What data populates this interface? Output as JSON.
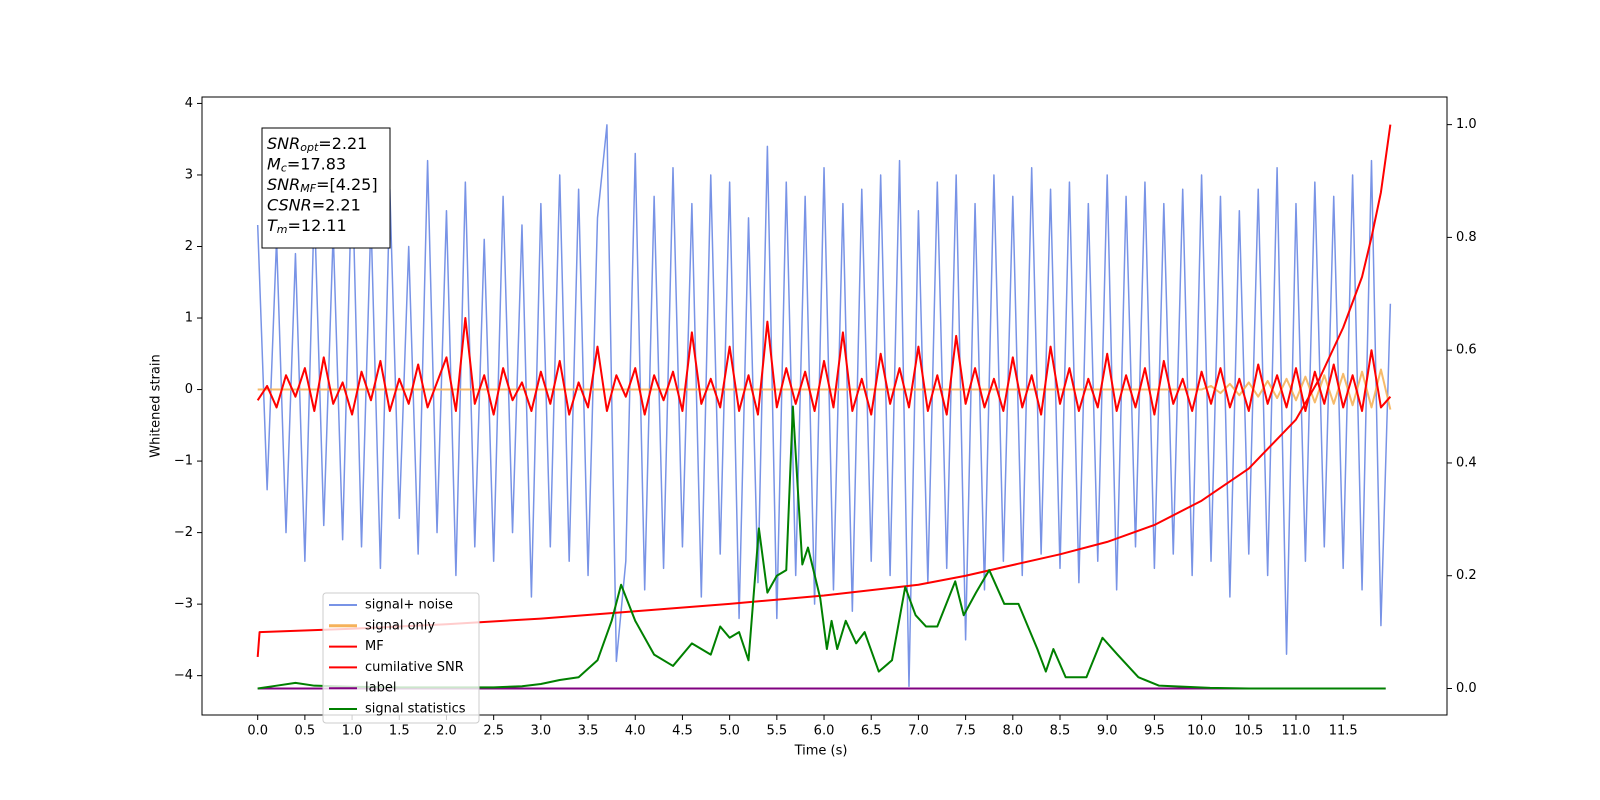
{
  "chart_data": {
    "type": "line",
    "xlabel": "Time (s)",
    "ylabel": "Whitened strain",
    "xlim": [
      -0.59,
      12.6
    ],
    "ylim": [
      -4.55,
      4.09
    ],
    "y2lim": [
      -0.047,
      1.049
    ],
    "xticks": [
      {
        "value": 0,
        "label": "0.0"
      },
      0.5,
      {
        "value": 1,
        "label": "1.0"
      },
      1.5,
      {
        "value": 2,
        "label": "2.0"
      },
      2.5,
      {
        "value": 3,
        "label": "3.0"
      },
      3.5,
      {
        "value": 4,
        "label": "4.0"
      },
      4.5,
      {
        "value": 5,
        "label": "5.0"
      },
      5.5,
      {
        "value": 6,
        "label": "6.0"
      },
      6.5,
      {
        "value": 7,
        "label": "7.0"
      },
      7.5,
      {
        "value": 8,
        "label": "8.0"
      },
      8.5,
      {
        "value": 9,
        "label": "9.0"
      },
      9.5,
      {
        "value": 10,
        "label": "10.0"
      },
      10.5,
      {
        "value": 11,
        "label": "11.0"
      },
      11.5
    ],
    "yticks": [
      {
        "value": -4,
        "label": "−4"
      },
      {
        "value": -3,
        "label": "−3"
      },
      {
        "value": -2,
        "label": "−2"
      },
      {
        "value": -1,
        "label": "−1"
      },
      0,
      1,
      2,
      3,
      4
    ],
    "y2ticks": [
      {
        "value": 0,
        "label": "0.0"
      },
      0.2,
      0.4,
      0.6,
      0.8,
      {
        "value": 1,
        "label": "1.0"
      }
    ],
    "annotations": [
      {
        "main": "SNR",
        "sub": "opt",
        "rest": "=2.21"
      },
      {
        "main": "M",
        "sub": "c",
        "rest": "=17.83"
      },
      {
        "main": "SNR",
        "sub": "MF",
        "rest": "=[4.25]"
      },
      {
        "main": "CSNR",
        "rest": "=2.21"
      },
      {
        "main": "T",
        "sub": "m",
        "rest": "=12.11"
      }
    ],
    "x": [
      0,
      0.1,
      0.2,
      0.3,
      0.4,
      0.5,
      0.6,
      0.7,
      0.8,
      0.9,
      1,
      1.1,
      1.2,
      1.3,
      1.4,
      1.5,
      1.6,
      1.7,
      1.8,
      1.9,
      2,
      2.1,
      2.2,
      2.3,
      2.4,
      2.5,
      2.6,
      2.7,
      2.8,
      2.9,
      3,
      3.1,
      3.2,
      3.3,
      3.4,
      3.5,
      3.6,
      3.7,
      3.8,
      3.9,
      4,
      4.1,
      4.2,
      4.3,
      4.4,
      4.5,
      4.6,
      4.7,
      4.8,
      4.9,
      5,
      5.1,
      5.2,
      5.3,
      5.4,
      5.5,
      5.6,
      5.7,
      5.8,
      5.9,
      6,
      6.1,
      6.2,
      6.3,
      6.4,
      6.5,
      6.6,
      6.7,
      6.8,
      6.9,
      7,
      7.1,
      7.2,
      7.3,
      7.4,
      7.5,
      7.6,
      7.7,
      7.8,
      7.9,
      8,
      8.1,
      8.2,
      8.3,
      8.4,
      8.5,
      8.6,
      8.7,
      8.8,
      8.9,
      9,
      9.1,
      9.2,
      9.3,
      9.4,
      9.5,
      9.6,
      9.7,
      9.8,
      9.9,
      10,
      10.1,
      10.2,
      10.3,
      10.4,
      10.5,
      10.6,
      10.7,
      10.8,
      10.9,
      11,
      11.1,
      11.2,
      11.3,
      11.4,
      11.5,
      11.6,
      11.7,
      11.8,
      11.9,
      12
    ],
    "series": [
      {
        "name": "signal+ noise",
        "color": "#7893e6",
        "values": [
          2.3,
          -1.4,
          2.1,
          -2.0,
          1.9,
          -2.4,
          2.6,
          -1.9,
          2.2,
          -2.1,
          3.1,
          -2.2,
          2.4,
          -2.5,
          2.8,
          -1.8,
          2.0,
          -2.3,
          3.2,
          -2.0,
          2.5,
          -2.6,
          2.9,
          -2.2,
          2.1,
          -2.4,
          2.7,
          -2.0,
          2.3,
          -2.9,
          2.6,
          -2.2,
          3.0,
          -2.4,
          2.8,
          -2.6,
          2.4,
          3.7,
          -3.8,
          -2.4,
          3.3,
          -2.8,
          2.7,
          -2.5,
          3.1,
          -2.2,
          2.6,
          -2.9,
          3.0,
          -2.3,
          2.9,
          -3.2,
          2.4,
          -2.7,
          3.4,
          -3.2,
          2.9,
          -2.6,
          2.7,
          -3.0,
          3.1,
          -2.8,
          2.6,
          -3.1,
          2.8,
          -2.4,
          3.0,
          -2.6,
          3.2,
          -4.15,
          2.5,
          -2.7,
          2.9,
          -2.5,
          3.0,
          -3.5,
          2.6,
          -2.8,
          3.0,
          -2.4,
          2.7,
          -2.6,
          3.1,
          -2.3,
          2.8,
          -2.5,
          2.9,
          -2.7,
          2.6,
          -2.4,
          3.0,
          -2.8,
          2.7,
          -2.2,
          2.9,
          -2.5,
          2.6,
          -2.3,
          2.8,
          -2.6,
          3.0,
          -2.4,
          2.7,
          -2.9,
          2.5,
          -2.3,
          2.8,
          -2.6,
          3.1,
          -3.7,
          2.6,
          -2.4,
          2.9,
          -2.2,
          2.7,
          -2.5,
          3.0,
          -2.8,
          3.2,
          -3.3,
          1.2
        ]
      },
      {
        "name": "signal only",
        "color": "#f5b25a",
        "values": [
          0,
          0,
          0,
          0,
          0,
          0,
          0,
          0,
          0,
          0,
          0,
          0,
          0,
          0,
          0,
          0,
          0,
          0,
          0,
          0,
          0,
          0,
          0,
          0,
          0,
          0,
          0,
          0,
          0,
          0,
          0,
          0,
          0,
          0,
          0,
          0,
          0,
          0,
          0,
          0,
          0,
          0,
          0,
          0,
          0,
          0,
          0,
          0,
          0,
          0,
          0,
          0,
          0,
          0,
          0,
          0,
          0,
          0,
          0,
          0,
          0,
          0,
          0,
          0,
          0,
          0,
          0,
          0,
          0,
          0,
          0,
          0,
          0,
          0,
          0,
          0,
          0,
          0,
          0,
          0,
          0,
          0,
          0,
          0,
          0,
          0,
          0,
          0,
          0,
          0,
          0,
          0,
          0,
          0,
          0,
          0,
          0,
          0,
          0,
          0,
          0,
          0.05,
          -0.05,
          0.08,
          -0.08,
          0.1,
          -0.1,
          0.12,
          -0.12,
          0.15,
          -0.15,
          0.18,
          -0.18,
          0.2,
          -0.2,
          0.22,
          -0.22,
          0.25,
          -0.25,
          0.28,
          -0.28
        ]
      },
      {
        "name": "MF",
        "color": "#ff0000",
        "values": [
          -0.15,
          0.05,
          -0.25,
          0.2,
          -0.1,
          0.3,
          -0.3,
          0.45,
          -0.2,
          0.1,
          -0.35,
          0.25,
          -0.15,
          0.4,
          -0.3,
          0.15,
          -0.2,
          0.35,
          -0.25,
          0.1,
          0.45,
          -0.3,
          1.0,
          -0.2,
          0.2,
          -0.35,
          0.3,
          -0.15,
          0.1,
          -0.3,
          0.25,
          -0.2,
          0.4,
          -0.35,
          0.1,
          -0.25,
          0.6,
          -0.3,
          0.2,
          -0.1,
          0.3,
          -0.35,
          0.2,
          -0.15,
          0.25,
          -0.3,
          0.8,
          -0.2,
          0.15,
          -0.25,
          0.6,
          -0.3,
          0.2,
          -0.35,
          0.95,
          -0.25,
          0.3,
          -0.2,
          0.25,
          -0.3,
          0.4,
          -0.25,
          0.8,
          -0.3,
          0.15,
          -0.35,
          0.5,
          -0.2,
          0.3,
          -0.25,
          0.6,
          -0.3,
          0.2,
          -0.35,
          0.75,
          -0.2,
          0.3,
          -0.25,
          0.15,
          -0.3,
          0.45,
          -0.25,
          0.2,
          -0.35,
          0.6,
          -0.2,
          0.3,
          -0.3,
          0.15,
          -0.25,
          0.5,
          -0.3,
          0.2,
          -0.25,
          0.3,
          -0.35,
          0.4,
          -0.2,
          0.15,
          -0.3,
          0.25,
          -0.2,
          0.3,
          -0.25,
          0.15,
          -0.3,
          0.35,
          -0.2,
          0.2,
          -0.25,
          0.3,
          -0.3,
          0.25,
          -0.2,
          0.35,
          -0.25,
          0.2,
          -0.3,
          0.55,
          -0.25,
          -0.1
        ]
      },
      {
        "name": "cumilative SNR",
        "color": "#ff0000",
        "axis": "y2",
        "x": [
          0,
          0.02,
          1,
          2,
          3,
          4,
          5,
          6,
          7,
          7.5,
          8,
          8.5,
          9,
          9.5,
          10,
          10.5,
          11,
          11.25,
          11.5,
          11.7,
          11.8,
          11.9,
          12.0
        ],
        "values": [
          0.056,
          0.1,
          0.106,
          0.114,
          0.124,
          0.137,
          0.15,
          0.165,
          0.184,
          0.2,
          0.219,
          0.238,
          0.26,
          0.29,
          0.333,
          0.39,
          0.477,
          0.55,
          0.64,
          0.73,
          0.8,
          0.88,
          1.0
        ]
      },
      {
        "name": "label",
        "color": "#800080",
        "axis": "y2",
        "x": [
          0,
          11.95
        ],
        "values": [
          0,
          0
        ]
      },
      {
        "name": "signal statistics",
        "color": "#008000",
        "axis": "y2",
        "x": [
          0,
          0.2,
          0.4,
          0.6,
          1.0,
          1.5,
          2.0,
          2.5,
          2.8,
          3.0,
          3.2,
          3.4,
          3.6,
          3.75,
          3.85,
          4.0,
          4.2,
          4.4,
          4.6,
          4.8,
          4.9,
          5.0,
          5.1,
          5.2,
          5.31,
          5.4,
          5.5,
          5.6,
          5.67,
          5.77,
          5.83,
          5.96,
          6.03,
          6.08,
          6.14,
          6.23,
          6.34,
          6.43,
          6.58,
          6.72,
          6.86,
          6.97,
          7.08,
          7.2,
          7.39,
          7.48,
          7.61,
          7.75,
          7.91,
          8.06,
          8.26,
          8.35,
          8.43,
          8.56,
          8.78,
          8.95,
          9.11,
          9.33,
          9.55,
          10.09,
          10.5,
          11.0,
          11.95
        ],
        "values": [
          0,
          0.005,
          0.01,
          0.005,
          0.003,
          0.002,
          0.002,
          0.002,
          0.004,
          0.008,
          0.015,
          0.02,
          0.05,
          0.12,
          0.184,
          0.12,
          0.06,
          0.04,
          0.08,
          0.06,
          0.11,
          0.09,
          0.1,
          0.05,
          0.284,
          0.17,
          0.2,
          0.21,
          0.5,
          0.22,
          0.25,
          0.16,
          0.07,
          0.12,
          0.07,
          0.12,
          0.08,
          0.1,
          0.03,
          0.05,
          0.18,
          0.13,
          0.11,
          0.11,
          0.19,
          0.13,
          0.17,
          0.21,
          0.15,
          0.15,
          0.07,
          0.03,
          0.07,
          0.02,
          0.02,
          0.09,
          0.06,
          0.02,
          0.005,
          0.001,
          0,
          0,
          0
        ]
      }
    ]
  }
}
